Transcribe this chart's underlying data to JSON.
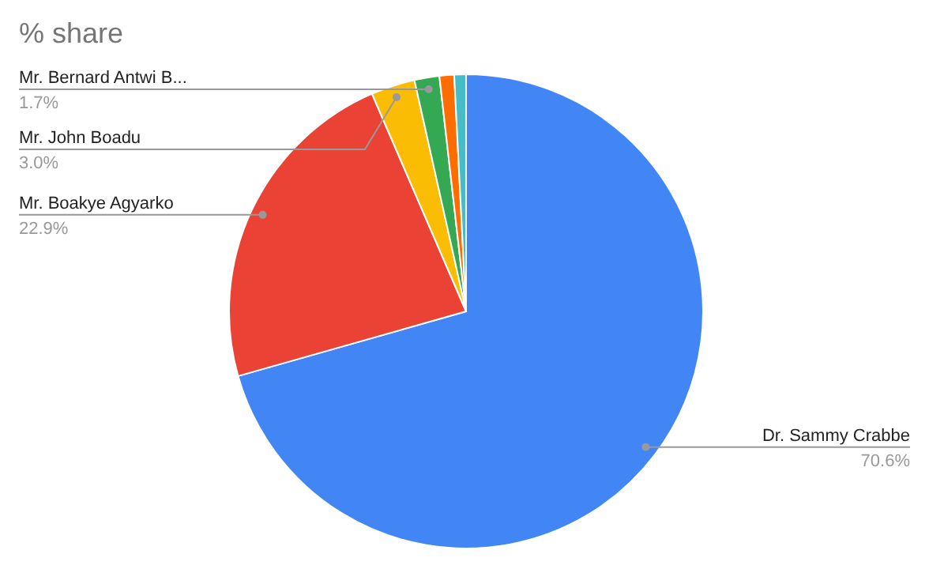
{
  "chart_data": {
    "type": "pie",
    "title": "% share",
    "categories": [
      "Dr. Sammy Crabbe",
      "Mr. Boakye Agyarko",
      "Mr. John Boadu",
      "Mr. Bernard Antwi B...",
      null,
      null
    ],
    "values": [
      70.6,
      22.9,
      3.0,
      1.7,
      1.0,
      0.8
    ],
    "value_labels": [
      "70.6%",
      "22.9%",
      "3.0%",
      "1.7%",
      null,
      null
    ],
    "colors": [
      "#4285f4",
      "#ea4335",
      "#fbbc04",
      "#34a853",
      "#ff6d01",
      "#46bdc6"
    ],
    "legend": false
  }
}
